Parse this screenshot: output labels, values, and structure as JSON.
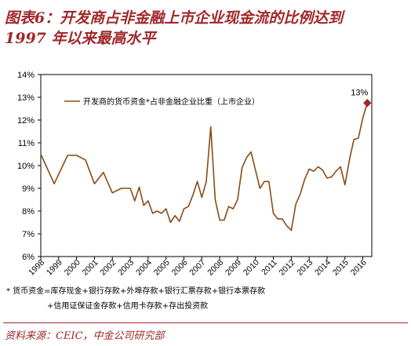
{
  "header": {
    "title_line1": "图表6：开发商占非金融上市企业现金流的比例达到",
    "title_line2": "1997 年以来最高水平"
  },
  "notes": {
    "line1": "* 货币资金=库存现金+银行存款+外埠存款+银行汇票存款+银行本票存款",
    "line2": "+信用证保证金存款+信用卡存款+存出投资款"
  },
  "footer": {
    "source": "资料来源：CEIC，中金公司研究部"
  },
  "chart_data": {
    "type": "line",
    "title": "",
    "xlabel": "",
    "ylabel": "",
    "ylim": [
      6,
      14
    ],
    "yticks": [
      "6%",
      "7%",
      "8%",
      "9%",
      "10%",
      "11%",
      "12%",
      "13%",
      "14%"
    ],
    "xticks": [
      "1998",
      "1999",
      "2000",
      "2001",
      "2002",
      "2003",
      "2004",
      "2005",
      "2006",
      "2007",
      "2008",
      "2009",
      "2010",
      "2011",
      "2012",
      "2013",
      "2014",
      "2015",
      "2016"
    ],
    "grid": false,
    "legend_position": "top-left",
    "colors": {
      "line": "#8b4b16",
      "marker": "#a0282b",
      "axis": "#000000"
    },
    "series": [
      {
        "name": "开发商的货币资金*占非金融企业比重（上市企业）",
        "points": [
          [
            1998.0,
            10.5
          ],
          [
            1998.75,
            9.2
          ],
          [
            1999.5,
            10.45
          ],
          [
            2000.0,
            10.45
          ],
          [
            2000.5,
            10.25
          ],
          [
            2001.0,
            9.2
          ],
          [
            2001.5,
            9.7
          ],
          [
            2002.0,
            8.8
          ],
          [
            2002.5,
            9.0
          ],
          [
            2003.0,
            9.0
          ],
          [
            2003.25,
            8.45
          ],
          [
            2003.5,
            9.05
          ],
          [
            2003.75,
            8.25
          ],
          [
            2004.0,
            8.45
          ],
          [
            2004.25,
            7.9
          ],
          [
            2004.5,
            8.0
          ],
          [
            2004.75,
            7.9
          ],
          [
            2005.0,
            8.1
          ],
          [
            2005.25,
            7.5
          ],
          [
            2005.5,
            7.8
          ],
          [
            2005.75,
            7.55
          ],
          [
            2006.0,
            8.1
          ],
          [
            2006.25,
            8.2
          ],
          [
            2006.5,
            8.7
          ],
          [
            2006.75,
            9.3
          ],
          [
            2007.0,
            8.6
          ],
          [
            2007.25,
            9.3
          ],
          [
            2007.5,
            11.7
          ],
          [
            2007.75,
            8.5
          ],
          [
            2008.0,
            7.6
          ],
          [
            2008.25,
            7.6
          ],
          [
            2008.5,
            8.2
          ],
          [
            2008.75,
            8.1
          ],
          [
            2009.0,
            8.5
          ],
          [
            2009.25,
            9.9
          ],
          [
            2009.5,
            10.35
          ],
          [
            2009.75,
            10.6
          ],
          [
            2010.0,
            9.8
          ],
          [
            2010.25,
            9.0
          ],
          [
            2010.5,
            9.3
          ],
          [
            2010.75,
            9.3
          ],
          [
            2011.0,
            7.9
          ],
          [
            2011.25,
            7.65
          ],
          [
            2011.5,
            7.65
          ],
          [
            2011.75,
            7.35
          ],
          [
            2012.0,
            7.15
          ],
          [
            2012.25,
            8.3
          ],
          [
            2012.5,
            8.75
          ],
          [
            2012.75,
            9.4
          ],
          [
            2013.0,
            9.85
          ],
          [
            2013.25,
            9.75
          ],
          [
            2013.5,
            9.95
          ],
          [
            2013.75,
            9.8
          ],
          [
            2014.0,
            9.45
          ],
          [
            2014.25,
            9.5
          ],
          [
            2014.5,
            9.75
          ],
          [
            2014.75,
            9.95
          ],
          [
            2015.0,
            9.15
          ],
          [
            2015.25,
            10.25
          ],
          [
            2015.5,
            11.15
          ],
          [
            2015.75,
            11.2
          ],
          [
            2016.0,
            12.1
          ],
          [
            2016.25,
            12.75
          ]
        ]
      }
    ],
    "annotations": [
      {
        "text": "13%",
        "x": 2016.25,
        "y": 12.75
      }
    ]
  }
}
